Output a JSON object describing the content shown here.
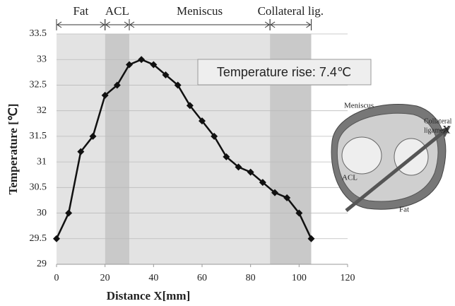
{
  "chart_data": {
    "type": "line",
    "x": [
      0,
      5,
      10,
      15,
      20,
      25,
      30,
      35,
      40,
      45,
      50,
      55,
      60,
      65,
      70,
      75,
      80,
      85,
      90,
      95,
      100,
      105
    ],
    "values": [
      29.5,
      30.0,
      31.2,
      31.5,
      32.3,
      32.5,
      32.9,
      33.0,
      32.9,
      32.7,
      32.5,
      32.1,
      31.8,
      31.5,
      31.1,
      30.9,
      30.8,
      30.6,
      30.4,
      30.3,
      30.0,
      29.5
    ],
    "color": "#111111",
    "xlabel": "Distance X[mm]",
    "ylabel": "Temperature [℃]",
    "xlim": [
      0,
      120
    ],
    "xticks": [
      0,
      20,
      40,
      60,
      80,
      100,
      120
    ],
    "ylim": [
      29,
      33.5
    ],
    "yticks": [
      29,
      29.5,
      30,
      30.5,
      31,
      31.5,
      32,
      32.5,
      33,
      33.5
    ],
    "grid": true,
    "regions": [
      {
        "name": "Fat",
        "start": 0,
        "end": 20,
        "color": "#e3e3e3"
      },
      {
        "name": "ACL",
        "start": 20,
        "end": 30,
        "color": "#c9c9c9"
      },
      {
        "name": "Meniscus",
        "start": 30,
        "end": 88,
        "color": "#e3e3e3"
      },
      {
        "name": "Collateral lig.",
        "start": 88,
        "end": 105,
        "color": "#c9c9c9"
      }
    ],
    "annotation": "Temperature rise: 7.4℃"
  },
  "diagram": {
    "meniscus": "Meniscus",
    "collateral": [
      "Collateral",
      "ligament"
    ],
    "axis": "X",
    "acl": "ACL",
    "fat": "Fat"
  }
}
